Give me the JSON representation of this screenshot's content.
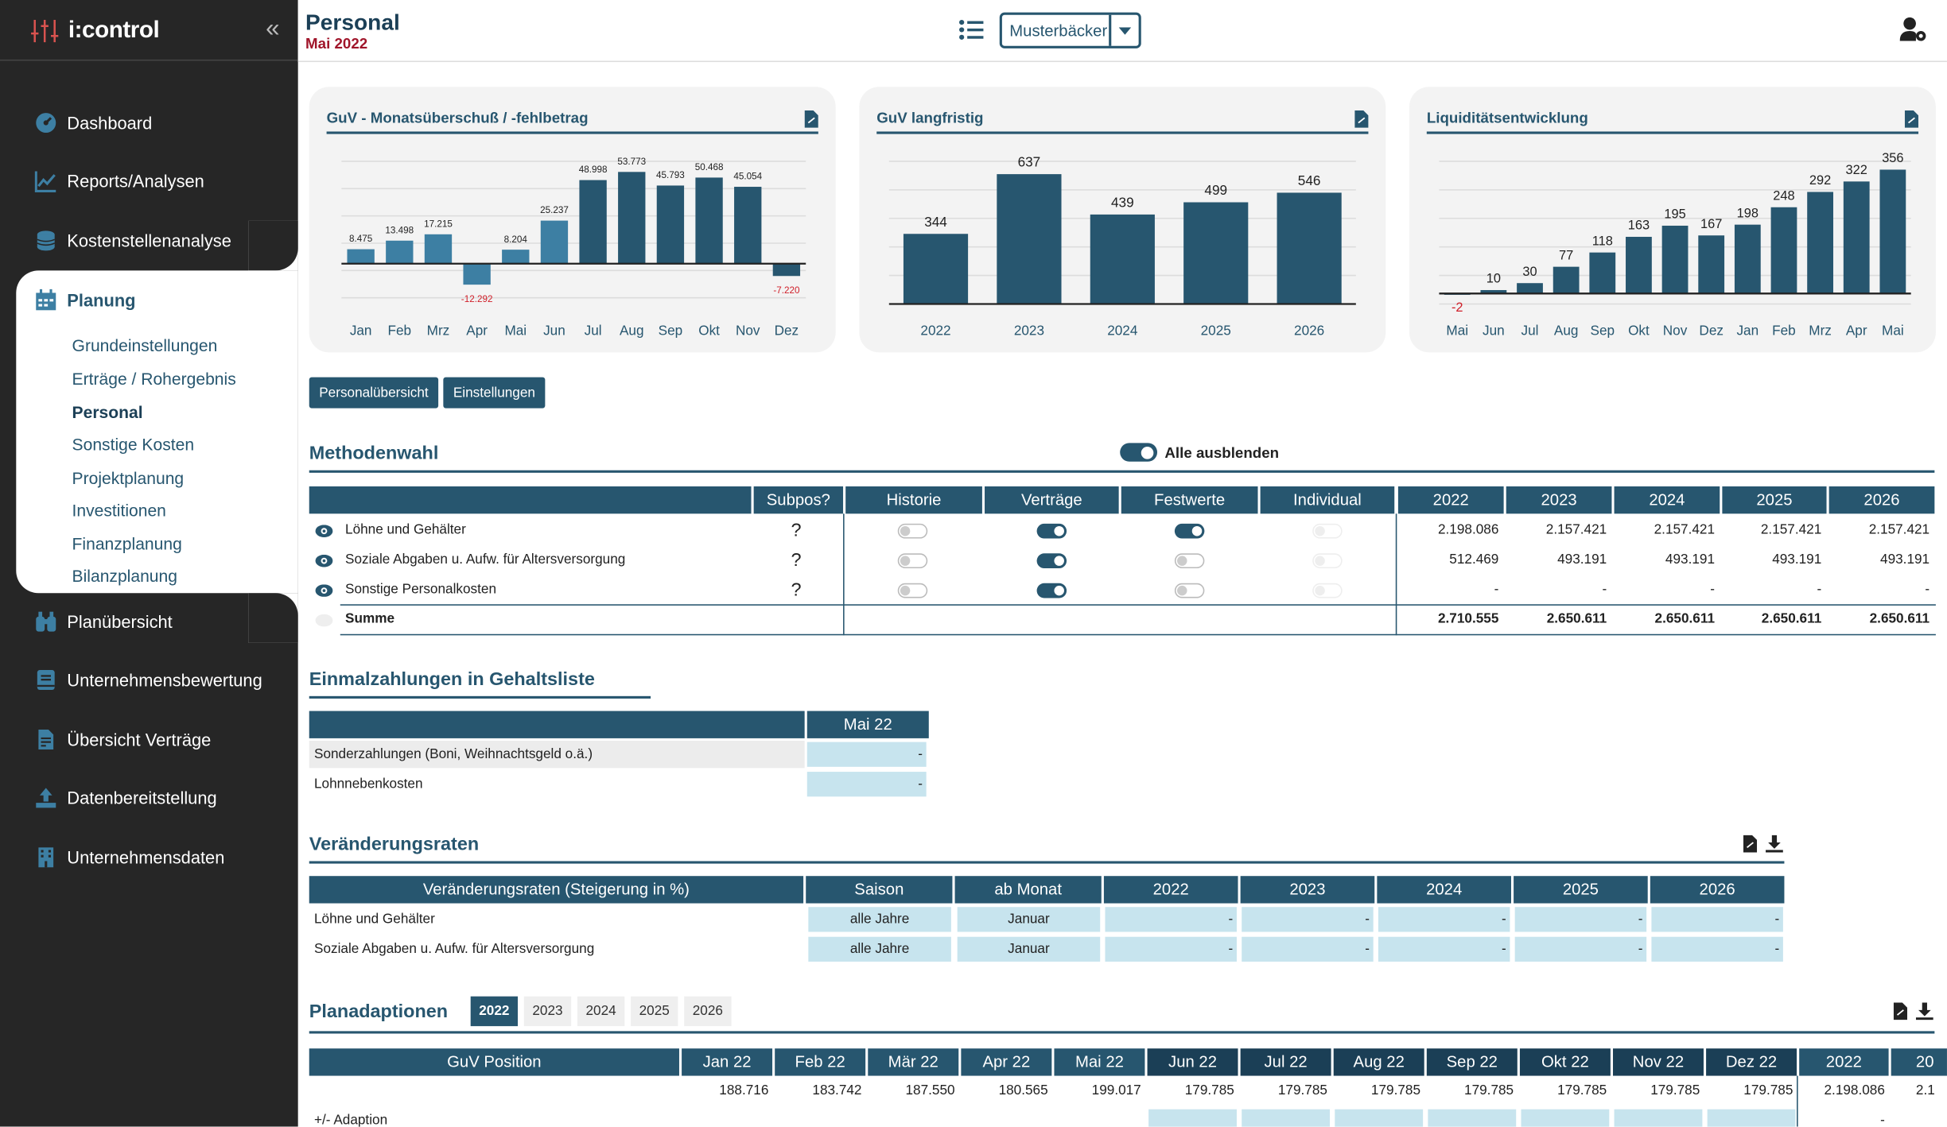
{
  "app": {
    "name": "i:control",
    "collapse_glyph": "«"
  },
  "nav": [
    {
      "label": "Dashboard",
      "icon": "dashboard-icon"
    },
    {
      "label": "Reports/Analysen",
      "icon": "chart-line-icon"
    },
    {
      "label": "Kostenstellenanalyse",
      "icon": "coins-icon"
    },
    {
      "label": "Planübersicht",
      "icon": "binoculars-icon"
    },
    {
      "label": "Unternehmensbewertung",
      "icon": "book-icon"
    },
    {
      "label": "Übersicht Verträge",
      "icon": "file-contract-icon"
    },
    {
      "label": "Datenbereitstellung",
      "icon": "upload-icon"
    },
    {
      "label": "Unternehmensdaten",
      "icon": "building-icon"
    }
  ],
  "planung": {
    "label": "Planung",
    "icon": "calendar-icon",
    "items": [
      "Grundeinstellungen",
      "Erträge / Rohergebnis",
      "Personal",
      "Sonstige Kosten",
      "Projektplanung",
      "Investitionen",
      "Finanzplanung",
      "Bilanzplanung"
    ],
    "active": "Personal"
  },
  "header": {
    "title": "Personal",
    "subtitle": "Mai 2022",
    "company": "Musterbäcker"
  },
  "colors": {
    "primary": "#27566f",
    "dark": "#1b3f56",
    "sidebar": "#262626",
    "input": "#c7e4ee",
    "negative": "#d0202a",
    "accent_red": "#a0152a"
  },
  "chart_data": [
    {
      "type": "bar",
      "title": "GuV - Monatsüberschuß / -fehlbetrag",
      "categories": [
        "Jan",
        "Feb",
        "Mrz",
        "Apr",
        "Mai",
        "Jun",
        "Jul",
        "Aug",
        "Sep",
        "Okt",
        "Nov",
        "Dez"
      ],
      "values": [
        8475,
        13498,
        17215,
        -12292,
        8204,
        25237,
        48998,
        53773,
        45793,
        50468,
        45054,
        -7220
      ],
      "labels": [
        "8.475",
        "13.498",
        "17.215",
        "-12.292",
        "8.204",
        "25.237",
        "48.998",
        "53.773",
        "45.793",
        "50.468",
        "45.054",
        "-7.220"
      ],
      "ylim": [
        -20000,
        60000
      ],
      "grid": true
    },
    {
      "type": "bar",
      "title": "GuV langfristig",
      "categories": [
        "2022",
        "2023",
        "2024",
        "2025",
        "2026"
      ],
      "values": [
        344,
        637,
        439,
        499,
        546
      ],
      "labels": [
        "344",
        "637",
        "439",
        "499",
        "546"
      ],
      "ylim": [
        0,
        700
      ],
      "grid": true
    },
    {
      "type": "bar",
      "title": "Liquiditätsentwicklung",
      "categories": [
        "Mai",
        "Jun",
        "Jul",
        "Aug",
        "Sep",
        "Okt",
        "Nov",
        "Dez",
        "Jan",
        "Feb",
        "Mrz",
        "Apr",
        "Mai"
      ],
      "values": [
        -2,
        10,
        30,
        77,
        118,
        163,
        195,
        167,
        198,
        248,
        292,
        322,
        356
      ],
      "labels": [
        "-2",
        "10",
        "30",
        "77",
        "118",
        "163",
        "195",
        "167",
        "198",
        "248",
        "292",
        "322",
        "356"
      ],
      "ylim": [
        -30,
        380
      ],
      "grid": true
    }
  ],
  "buttons": {
    "overview": "Personalübersicht",
    "settings": "Einstellungen"
  },
  "methoden": {
    "title": "Methodenwahl",
    "toggle_all": "Alle ausblenden",
    "headers": [
      "Subpos?",
      "Historie",
      "Verträge",
      "Festwerte",
      "Individual",
      "2022",
      "2023",
      "2024",
      "2025",
      "2026"
    ],
    "rows": [
      {
        "label": "Löhne und Gehälter",
        "q": "?",
        "toggles": [
          "off",
          "on",
          "on",
          "dis"
        ],
        "values": [
          "2.198.086",
          "2.157.421",
          "2.157.421",
          "2.157.421",
          "2.157.421"
        ]
      },
      {
        "label": "Soziale Abgaben u. Aufw. für Altersversorgung",
        "q": "?",
        "toggles": [
          "off",
          "on",
          "off",
          "dis"
        ],
        "values": [
          "512.469",
          "493.191",
          "493.191",
          "493.191",
          "493.191"
        ]
      },
      {
        "label": "Sonstige Personalkosten",
        "q": "?",
        "toggles": [
          "off",
          "on",
          "off",
          "dis"
        ],
        "values": [
          "-",
          "-",
          "-",
          "-",
          "-"
        ]
      }
    ],
    "sum": {
      "label": "Summe",
      "values": [
        "2.710.555",
        "2.650.611",
        "2.650.611",
        "2.650.611",
        "2.650.611"
      ]
    }
  },
  "einmal": {
    "title": "Einmalzahlungen in Gehaltsliste",
    "header": "Mai 22",
    "rows": [
      {
        "label": "Sonderzahlungen (Boni, Weihnachtsgeld o.ä.)",
        "value": "-"
      },
      {
        "label": "Lohnnebenkosten",
        "value": "-"
      }
    ]
  },
  "raten": {
    "title": "Veränderungsraten",
    "headers": [
      "Veränderungsraten (Steigerung in %)",
      "Saison",
      "ab Monat",
      "2022",
      "2023",
      "2024",
      "2025",
      "2026"
    ],
    "rows": [
      {
        "label": "Löhne und Gehälter",
        "saison": "alle Jahre",
        "monat": "Januar",
        "values": [
          "-",
          "-",
          "-",
          "-",
          "-"
        ]
      },
      {
        "label": "Soziale Abgaben u. Aufw. für Altersversorgung",
        "saison": "alle Jahre",
        "monat": "Januar",
        "values": [
          "-",
          "-",
          "-",
          "-",
          "-"
        ]
      }
    ]
  },
  "plan": {
    "title": "Planadaptionen",
    "tabs": [
      "2022",
      "2023",
      "2024",
      "2025",
      "2026"
    ],
    "active_tab": "2022",
    "headers": [
      "GuV Position",
      "Jan 22",
      "Feb 22",
      "Mär 22",
      "Apr 22",
      "Mai 22",
      "Jun 22",
      "Jul 22",
      "Aug 22",
      "Sep 22",
      "Okt 22",
      "Nov 22",
      "Dez 22",
      "2022",
      "20"
    ],
    "row1": [
      "188.716",
      "183.742",
      "187.550",
      "180.565",
      "199.017",
      "179.785",
      "179.785",
      "179.785",
      "179.785",
      "179.785",
      "179.785",
      "179.785",
      "2.198.086",
      "2.1"
    ],
    "row2_label": "+/- Adaption",
    "row2_value": "-"
  }
}
